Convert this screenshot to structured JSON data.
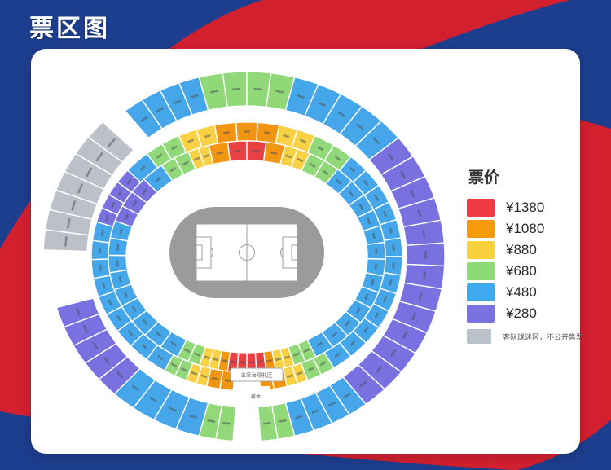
{
  "page_title": "票区图",
  "background": {
    "red": "#d2202f",
    "navy": "#1d3e8e"
  },
  "legend": {
    "title": "票价",
    "items": [
      {
        "color": "#ee3b44",
        "label": "¥1380"
      },
      {
        "color": "#f49a0c",
        "label": "¥1080"
      },
      {
        "color": "#f8d23e",
        "label": "¥880"
      },
      {
        "color": "#8cdb77",
        "label": "¥680"
      },
      {
        "color": "#3fa9ee",
        "label": "¥480"
      },
      {
        "color": "#7b72e2",
        "label": "¥280"
      }
    ],
    "note": {
      "color": "#bcc2ca",
      "label": "客队球迷区，不公开售票"
    }
  },
  "stadium": {
    "colors": {
      "red": "#e94043",
      "orange": "#f29511",
      "yellow": "#f8d244",
      "green": "#90d878",
      "blue": "#45a7e9",
      "purple": "#7a71e1",
      "gray": "#bcc1c9",
      "white": "#ffffff"
    },
    "center_boxes": [
      {
        "id": "rostrum-box",
        "label": "主席台观礼区"
      },
      {
        "id": "media-box",
        "label": "媒体"
      }
    ],
    "rings": {
      "outer": [
        {
          "color": "green",
          "from": -14,
          "to": 14,
          "blocks": 4
        },
        {
          "color": "blue",
          "from": 14,
          "to": 50,
          "blocks": 5
        },
        {
          "color": "purple",
          "from": 50,
          "to": 143,
          "blocks": 13
        },
        {
          "color": "blue",
          "from": 143,
          "to": 166,
          "blocks": 4
        },
        {
          "color": "green",
          "from": 166,
          "to": 176,
          "blocks": 2
        },
        {
          "color": "white",
          "from": 176,
          "to": 184,
          "blocks": 1,
          "gap": true
        },
        {
          "color": "green",
          "from": 184,
          "to": 194,
          "blocks": 2
        },
        {
          "color": "blue",
          "from": 194,
          "to": 222,
          "blocks": 4
        },
        {
          "color": "purple",
          "from": 222,
          "to": 254,
          "blocks": 5
        },
        {
          "color": "gray",
          "from": 272,
          "to": 315,
          "blocks": 7,
          "away": true
        },
        {
          "color": "white",
          "from": 315,
          "to": 322,
          "blocks": 1,
          "gap": true
        },
        {
          "color": "blue",
          "from": 322,
          "to": 346,
          "blocks": 4
        }
      ],
      "middle": [
        {
          "color": "orange",
          "from": -12,
          "to": 12,
          "blocks": 3
        },
        {
          "color": "yellow",
          "from": 12,
          "to": 26,
          "blocks": 2
        },
        {
          "color": "green",
          "from": 26,
          "to": 42,
          "blocks": 2
        },
        {
          "color": "blue",
          "from": 42,
          "to": 146,
          "blocks": 13
        },
        {
          "color": "green",
          "from": 146,
          "to": 157,
          "blocks": 2
        },
        {
          "color": "yellow",
          "from": 157,
          "to": 165,
          "blocks": 2
        },
        {
          "color": "orange",
          "from": 165,
          "to": 175,
          "blocks": 2
        },
        {
          "color": "white",
          "from": 175,
          "to": 185,
          "blocks": 1,
          "gap": true
        },
        {
          "color": "orange",
          "from": 185,
          "to": 195,
          "blocks": 2
        },
        {
          "color": "yellow",
          "from": 195,
          "to": 203,
          "blocks": 2
        },
        {
          "color": "green",
          "from": 203,
          "to": 212,
          "blocks": 2
        },
        {
          "color": "blue",
          "from": 212,
          "to": 285,
          "blocks": 9
        },
        {
          "color": "purple",
          "from": 285,
          "to": 310,
          "blocks": 4
        },
        {
          "color": "blue",
          "from": 310,
          "to": 320,
          "blocks": 1
        },
        {
          "color": "green",
          "from": 320,
          "to": 334,
          "blocks": 2
        },
        {
          "color": "yellow",
          "from": 334,
          "to": 348,
          "blocks": 2
        }
      ],
      "inner": [
        {
          "color": "red",
          "from": -8,
          "to": 8,
          "blocks": 2
        },
        {
          "color": "orange",
          "from": 8,
          "to": 16,
          "blocks": 1
        },
        {
          "color": "yellow",
          "from": 16,
          "to": 27,
          "blocks": 2
        },
        {
          "color": "green",
          "from": 27,
          "to": 41,
          "blocks": 2
        },
        {
          "color": "blue",
          "from": 41,
          "to": 150,
          "blocks": 13
        },
        {
          "color": "green",
          "from": 150,
          "to": 160,
          "blocks": 2
        },
        {
          "color": "yellow",
          "from": 160,
          "to": 168,
          "blocks": 2
        },
        {
          "color": "orange",
          "from": 168,
          "to": 172,
          "blocks": 1
        },
        {
          "color": "red",
          "from": 172,
          "to": 188,
          "blocks": 4
        },
        {
          "color": "orange",
          "from": 188,
          "to": 192,
          "blocks": 1
        },
        {
          "color": "yellow",
          "from": 192,
          "to": 200,
          "blocks": 2
        },
        {
          "color": "green",
          "from": 200,
          "to": 210,
          "blocks": 2
        },
        {
          "color": "blue",
          "from": 210,
          "to": 288,
          "blocks": 9
        },
        {
          "color": "purple",
          "from": 288,
          "to": 312,
          "blocks": 3
        },
        {
          "color": "blue",
          "from": 312,
          "to": 322,
          "blocks": 1
        },
        {
          "color": "green",
          "from": 322,
          "to": 335,
          "blocks": 2
        },
        {
          "color": "yellow",
          "from": 335,
          "to": 344,
          "blocks": 2
        },
        {
          "color": "orange",
          "from": 344,
          "to": 352,
          "blocks": 1
        }
      ]
    }
  }
}
